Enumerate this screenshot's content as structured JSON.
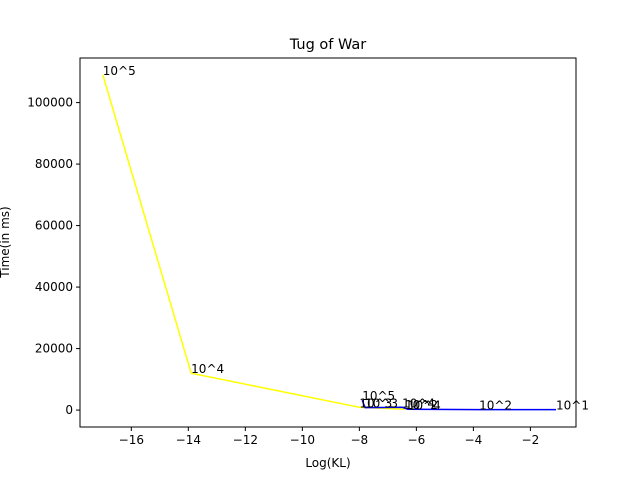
{
  "chart_data": {
    "type": "line",
    "title": "Tug of War",
    "xlabel": "Log(KL)",
    "ylabel": "Time(in ms)",
    "xlim": [
      -17.8,
      -0.4
    ],
    "ylim": [
      -5500,
      114500
    ],
    "xticks": [
      -16,
      -14,
      -12,
      -10,
      -8,
      -6,
      -4,
      -2
    ],
    "xtick_labels": [
      "−16",
      "−14",
      "−12",
      "−10",
      "−8",
      "−6",
      "−4",
      "−2"
    ],
    "yticks": [
      0,
      20000,
      40000,
      60000,
      80000,
      100000
    ],
    "ytick_labels": [
      "0",
      "20000",
      "40000",
      "60000",
      "80000",
      "100000"
    ],
    "grid": false,
    "series": [
      {
        "color": "#ffff00",
        "points": [
          {
            "x": -17.0,
            "y": 109000,
            "label": "10^5"
          },
          {
            "x": -13.9,
            "y": 12000,
            "label": "10^4"
          },
          {
            "x": -8.0,
            "y": 900,
            "label": "10^3"
          },
          {
            "x": -6.4,
            "y": 300,
            "label": "10^2"
          }
        ]
      },
      {
        "color": "#0000ff",
        "points": [
          {
            "x": -7.9,
            "y": 3200,
            "label": "10^5"
          },
          {
            "x": -7.8,
            "y": 800,
            "label": "10^3"
          },
          {
            "x": -6.5,
            "y": 900,
            "label": "10^4"
          },
          {
            "x": -6.3,
            "y": 250,
            "label": "10^4"
          },
          {
            "x": -3.8,
            "y": 150,
            "label": "10^2"
          },
          {
            "x": -1.1,
            "y": 150,
            "label": "10^1"
          }
        ]
      }
    ]
  }
}
